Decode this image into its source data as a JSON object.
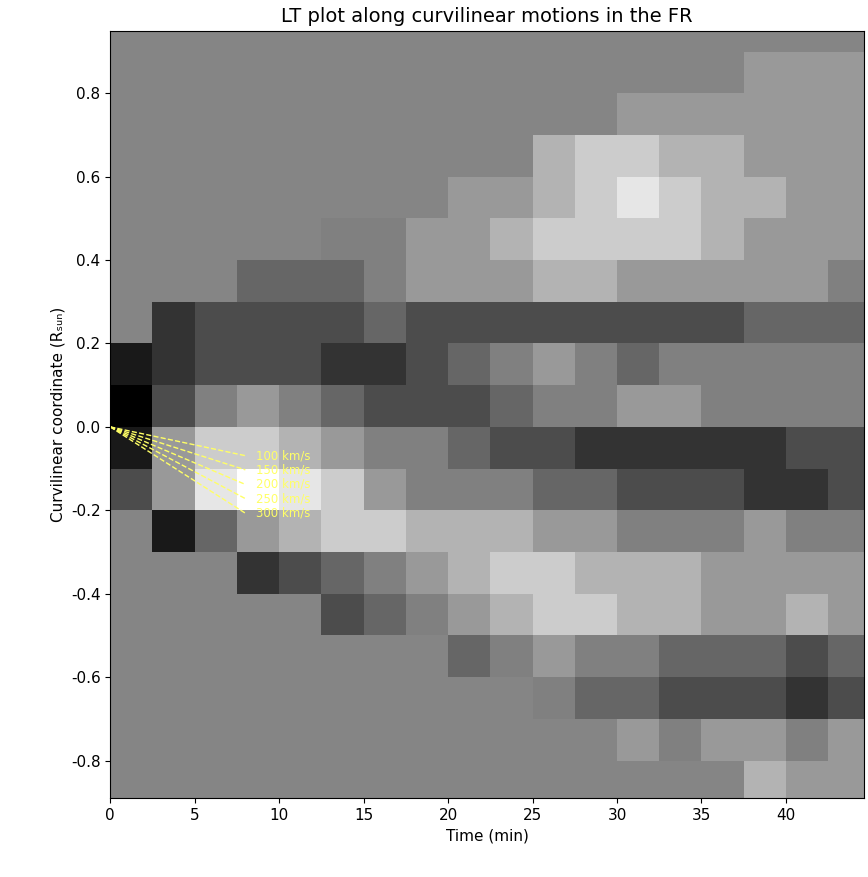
{
  "chart_data": {
    "type": "heatmap",
    "title": "LT plot along curvilinear motions in the FR",
    "x_label": "Time (min)",
    "y_label": "Curvilinear coordinate (Rₛᵤₙ)",
    "xlim": [
      0,
      44.6
    ],
    "ylim": [
      -0.89,
      0.95
    ],
    "xticks": [
      0,
      5,
      10,
      15,
      20,
      25,
      30,
      35,
      40
    ],
    "yticks": [
      -0.8,
      -0.6,
      -0.4,
      -0.2,
      {
        "value": 0,
        "label": "0.0"
      },
      0.2,
      0.4,
      0.6,
      0.8
    ],
    "time_edges": [
      0,
      2.5,
      5,
      7.5,
      10,
      12.5,
      15,
      17.5,
      20,
      22.5,
      25,
      27.5,
      30,
      32.5,
      35,
      37.5,
      40,
      42.5,
      45
    ],
    "coord_edges": [
      -0.9,
      -0.8,
      -0.7,
      -0.6,
      -0.5,
      -0.4,
      -0.3,
      -0.2,
      -0.1,
      0.0,
      0.1,
      0.2,
      0.3,
      0.4,
      0.5,
      0.6,
      0.7,
      0.8,
      0.9
    ],
    "cells": [
      [
        null,
        null,
        null,
        null,
        null,
        null,
        null,
        null,
        null,
        null,
        null,
        null,
        null,
        null,
        null,
        0.55,
        0.5,
        0.5
      ],
      [
        null,
        null,
        null,
        null,
        null,
        null,
        null,
        null,
        null,
        null,
        null,
        null,
        0.5,
        0.45,
        0.5,
        0.5,
        0.45,
        0.5
      ],
      [
        null,
        null,
        null,
        null,
        null,
        null,
        null,
        null,
        null,
        null,
        0.45,
        0.4,
        0.4,
        0.35,
        0.35,
        0.35,
        0.3,
        0.35
      ],
      [
        null,
        null,
        null,
        null,
        null,
        null,
        null,
        null,
        0.4,
        0.45,
        0.5,
        0.45,
        0.45,
        0.4,
        0.4,
        0.4,
        0.35,
        0.4
      ],
      [
        null,
        null,
        null,
        null,
        null,
        0.35,
        0.4,
        0.45,
        0.5,
        0.55,
        0.6,
        0.6,
        0.55,
        0.55,
        0.5,
        0.5,
        0.55,
        0.5
      ],
      [
        null,
        null,
        null,
        0.3,
        0.35,
        0.4,
        0.45,
        0.5,
        0.55,
        0.6,
        0.6,
        0.55,
        0.55,
        0.55,
        0.5,
        0.5,
        0.5,
        0.5
      ],
      [
        null,
        0.25,
        0.4,
        0.5,
        0.55,
        0.6,
        0.6,
        0.55,
        0.55,
        0.55,
        0.5,
        0.5,
        0.45,
        0.45,
        0.45,
        0.5,
        0.45,
        0.45
      ],
      [
        0.35,
        0.5,
        0.65,
        0.7,
        0.65,
        0.6,
        0.5,
        0.45,
        0.45,
        0.45,
        0.4,
        0.4,
        0.35,
        0.35,
        0.35,
        0.3,
        0.3,
        0.35
      ],
      [
        0.25,
        0.5,
        0.6,
        0.6,
        0.55,
        0.5,
        0.45,
        0.45,
        0.4,
        0.35,
        0.35,
        0.3,
        0.3,
        0.3,
        0.3,
        0.3,
        0.35,
        0.35
      ],
      [
        0.2,
        0.35,
        0.45,
        0.5,
        0.45,
        0.4,
        0.35,
        0.35,
        0.35,
        0.4,
        0.45,
        0.45,
        0.5,
        0.5,
        0.45,
        0.45,
        0.45,
        0.45
      ],
      [
        0.25,
        0.3,
        0.35,
        0.35,
        0.35,
        0.3,
        0.3,
        0.35,
        0.4,
        0.45,
        0.5,
        0.45,
        0.4,
        0.45,
        0.45,
        0.45,
        0.45,
        0.45
      ],
      [
        null,
        0.3,
        0.35,
        0.35,
        0.35,
        0.35,
        0.4,
        0.35,
        0.35,
        0.35,
        0.35,
        0.35,
        0.35,
        0.35,
        0.35,
        0.4,
        0.4,
        0.4
      ],
      [
        null,
        null,
        null,
        0.4,
        0.4,
        0.4,
        0.45,
        0.5,
        0.5,
        0.5,
        0.55,
        0.55,
        0.5,
        0.5,
        0.5,
        0.5,
        0.5,
        0.45
      ],
      [
        null,
        null,
        null,
        null,
        null,
        0.45,
        0.45,
        0.5,
        0.5,
        0.55,
        0.6,
        0.6,
        0.6,
        0.6,
        0.55,
        0.5,
        0.5,
        0.5
      ],
      [
        null,
        null,
        null,
        null,
        null,
        null,
        null,
        null,
        0.5,
        0.5,
        0.55,
        0.6,
        0.65,
        0.6,
        0.55,
        0.55,
        0.5,
        0.5
      ],
      [
        null,
        null,
        null,
        null,
        null,
        null,
        null,
        null,
        null,
        null,
        0.55,
        0.6,
        0.6,
        0.55,
        0.55,
        0.5,
        0.5,
        0.5
      ],
      [
        null,
        null,
        null,
        null,
        null,
        null,
        null,
        null,
        null,
        null,
        null,
        null,
        0.5,
        0.5,
        0.5,
        0.5,
        0.5,
        0.5
      ],
      [
        null,
        null,
        null,
        null,
        null,
        null,
        null,
        null,
        null,
        null,
        null,
        null,
        null,
        null,
        null,
        0.5,
        0.5,
        0.5
      ]
    ],
    "speed_lines": [
      {
        "label": "100 km/s",
        "x": [
          0,
          8
        ],
        "y": [
          0,
          -0.069
        ]
      },
      {
        "label": "150 km/s",
        "x": [
          0,
          8
        ],
        "y": [
          0,
          -0.103
        ]
      },
      {
        "label": "200 km/s",
        "x": [
          0,
          8
        ],
        "y": [
          0,
          -0.138
        ]
      },
      {
        "label": "250 km/s",
        "x": [
          0,
          8
        ],
        "y": [
          0,
          -0.172
        ]
      },
      {
        "label": "300 km/s",
        "x": [
          0,
          8
        ],
        "y": [
          0,
          -0.207
        ]
      }
    ],
    "speed_line_color": "#ffff66",
    "line_style": "dashed"
  }
}
